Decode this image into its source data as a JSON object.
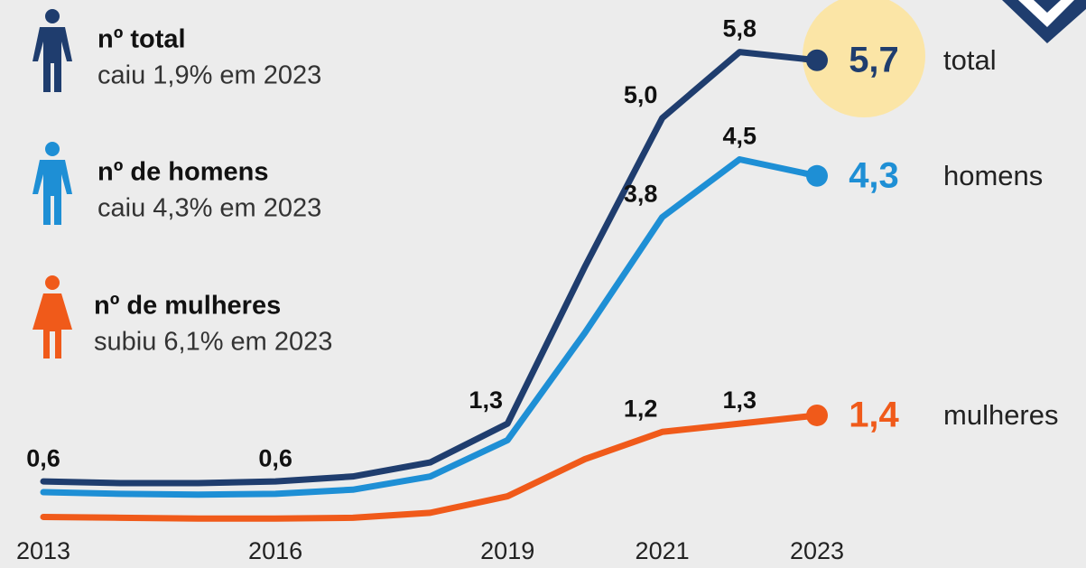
{
  "chart_data": {
    "type": "line",
    "categories": [
      "2013",
      null,
      null,
      "2016",
      null,
      null,
      "2019",
      null,
      "2021",
      null,
      "2023"
    ],
    "ylim": [
      0,
      6.43
    ],
    "series": [
      {
        "name": "total",
        "color": "#1f3d6e",
        "legend_title": "nº total",
        "legend_note": "caiu 1,9% em 2023",
        "values": [
          0.6,
          0.58,
          0.58,
          0.6,
          0.66,
          0.83,
          1.3,
          3.2,
          5.0,
          5.8,
          5.7
        ],
        "value_labels": [
          "0,6",
          null,
          null,
          "0,6",
          null,
          null,
          "1,3",
          null,
          "5,0",
          "5,8",
          "5,7"
        ]
      },
      {
        "name": "homens",
        "color": "#1e8fd5",
        "legend_title": "nº de homens",
        "legend_note": "caiu 4,3% em 2023",
        "values": [
          0.47,
          0.45,
          0.44,
          0.45,
          0.5,
          0.66,
          1.1,
          2.4,
          3.8,
          4.5,
          4.3
        ],
        "value_labels": [
          null,
          null,
          null,
          null,
          null,
          null,
          null,
          null,
          "3,8",
          "4,5",
          "4,3"
        ]
      },
      {
        "name": "mulheres",
        "color": "#f05a1a",
        "legend_title": "nº de mulheres",
        "legend_note": "subiu 6,1% em 2023",
        "values": [
          0.17,
          0.16,
          0.15,
          0.15,
          0.16,
          0.22,
          0.42,
          0.87,
          1.2,
          1.3,
          1.4
        ],
        "value_labels": [
          null,
          null,
          null,
          null,
          null,
          null,
          null,
          null,
          "1,2",
          "1,3",
          "1,4"
        ]
      }
    ]
  }
}
